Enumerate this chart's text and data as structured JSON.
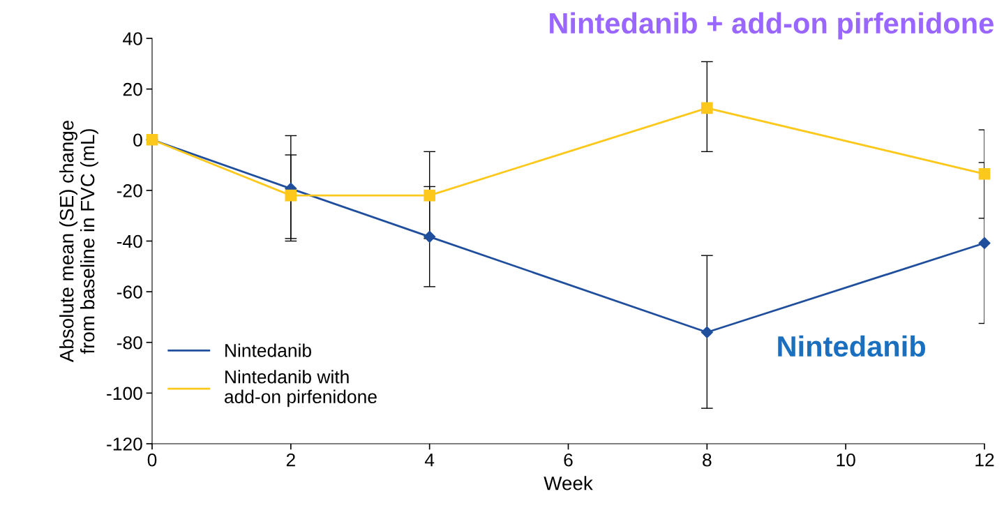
{
  "chart_data": {
    "type": "line",
    "xlabel": "Week",
    "ylabel": "Absolute mean (SE) change\nfrom baseline in FVC (mL)",
    "x": [
      0,
      2,
      4,
      8,
      12
    ],
    "series": [
      {
        "name": "Nintedanib",
        "color": "#1f4e9c",
        "marker": "diamond",
        "values": [
          0,
          -19.3,
          -38.3,
          -76,
          -40.8
        ],
        "errors": [
          null,
          [
            -40,
            1.6
          ],
          [
            -58,
            -18.5
          ],
          [
            -106,
            -45.7
          ],
          [
            -72.5,
            -9
          ]
        ]
      },
      {
        "name": "Nintedanib with\nadd-on pirfenidone",
        "color": "#fcc81c",
        "marker": "square",
        "values": [
          0,
          -22,
          -22,
          12.5,
          -13.5
        ],
        "errors": [
          null,
          [
            -39,
            -6
          ],
          [
            -39,
            -4.7
          ],
          [
            -4.7,
            30.8
          ],
          [
            -31,
            3.9
          ]
        ]
      }
    ],
    "xlim": [
      0,
      12
    ],
    "xticks": [
      0,
      2,
      4,
      6,
      8,
      10,
      12
    ],
    "ylim": [
      -120,
      40
    ],
    "yticks": [
      -120,
      -100,
      -80,
      -60,
      -40,
      -20,
      0,
      20,
      40
    ],
    "legend": "bottom left",
    "grid": false,
    "line_style": "solid",
    "annotations": [
      "Nintedanib + add-on pirfenidone",
      "Nintedanib"
    ]
  }
}
